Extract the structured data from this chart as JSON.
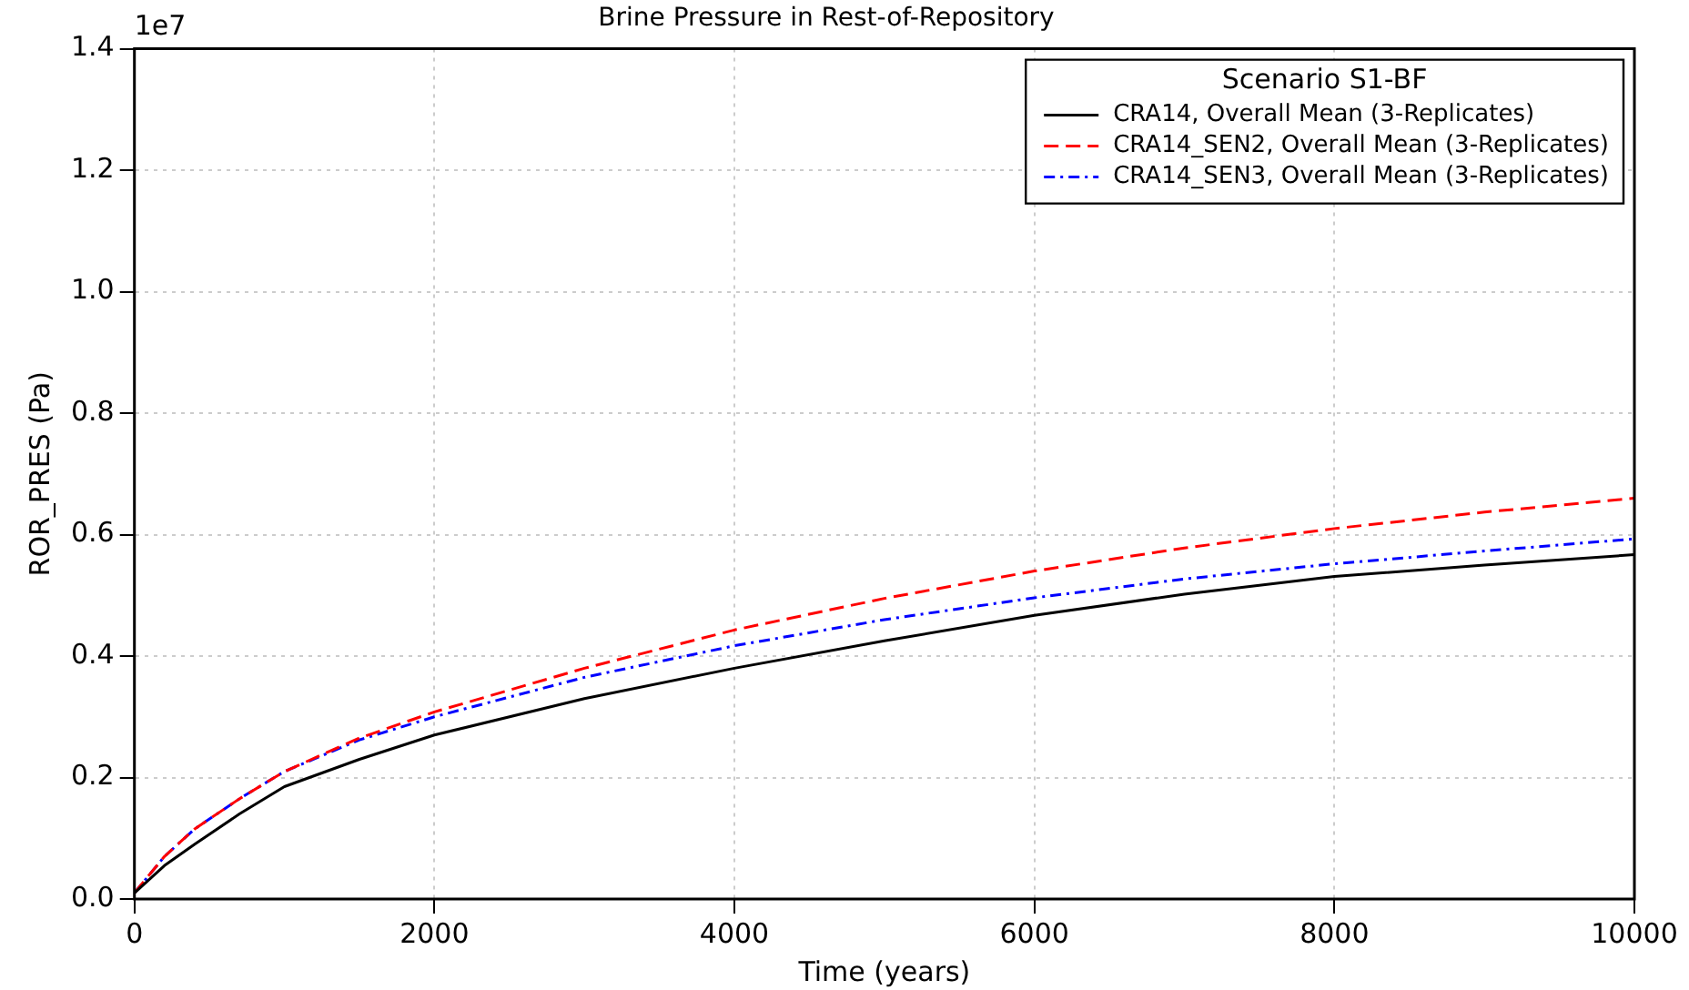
{
  "chart_data": {
    "type": "line",
    "title": "Brine Pressure in Rest-of-Repository",
    "xlabel": "Time (years)",
    "ylabel": "ROR_PRES (Pa)",
    "legend_title": "Scenario S1-BF",
    "annotations": [
      "1e7"
    ],
    "xlim": [
      0,
      10000
    ],
    "xticks": [
      0,
      2000,
      4000,
      6000,
      8000,
      10000
    ],
    "ylim": [
      0,
      1.4
    ],
    "yticks": [
      {
        "value": 0,
        "label": "0.0"
      },
      {
        "value": 0.2,
        "label": "0.2"
      },
      {
        "value": 0.4,
        "label": "0.4"
      },
      {
        "value": 0.6,
        "label": "0.6"
      },
      {
        "value": 0.8,
        "label": "0.8"
      },
      {
        "value": 1.0,
        "label": "1.0"
      },
      {
        "value": 1.2,
        "label": "1.2"
      },
      {
        "value": 1.4,
        "label": "1.4"
      }
    ],
    "grid": true,
    "legend": "top right",
    "marker": "none",
    "x": [
      0,
      200,
      400,
      700,
      1000,
      1500,
      2000,
      3000,
      4000,
      5000,
      6000,
      7000,
      8000,
      9000,
      10000
    ],
    "series": [
      {
        "name": "CRA14, Overall Mean (3-Replicates)",
        "color": "#000000",
        "line_style": "solid",
        "values": [
          0.01,
          0.055,
          0.09,
          0.14,
          0.185,
          0.23,
          0.27,
          0.33,
          0.38,
          0.425,
          0.467,
          0.502,
          0.531,
          0.55,
          0.567
        ]
      },
      {
        "name": "CRA14_SEN2, Overall Mean (3-Replicates)",
        "color": "#ff0000",
        "line_style": "dashed",
        "values": [
          0.01,
          0.07,
          0.115,
          0.165,
          0.21,
          0.265,
          0.308,
          0.38,
          0.443,
          0.495,
          0.54,
          0.578,
          0.61,
          0.637,
          0.66
        ]
      },
      {
        "name": "CRA14_SEN3, Overall Mean (3-Replicates)",
        "color": "#0000ff",
        "line_style": "dotted",
        "values": [
          0.01,
          0.07,
          0.115,
          0.165,
          0.21,
          0.262,
          0.3,
          0.365,
          0.417,
          0.46,
          0.496,
          0.527,
          0.552,
          0.573,
          0.593
        ]
      }
    ]
  }
}
